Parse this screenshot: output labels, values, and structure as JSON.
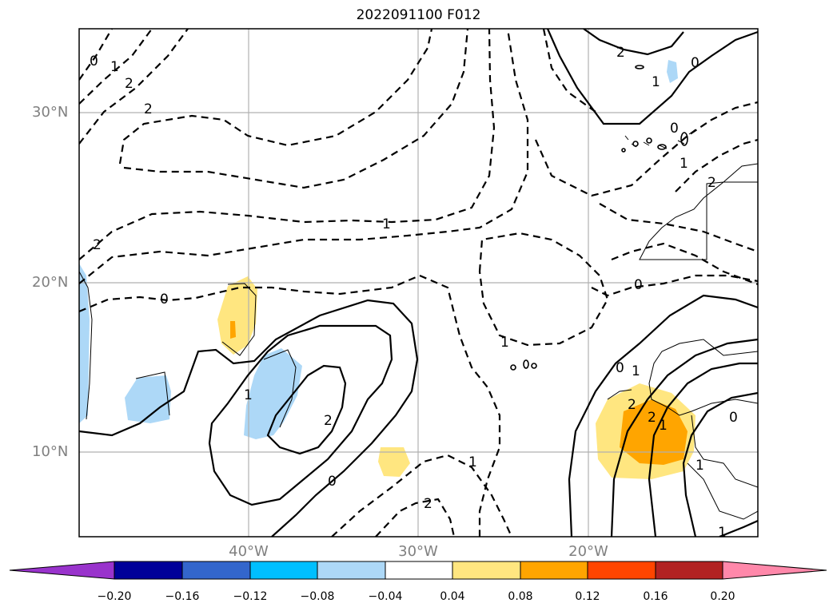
{
  "title": "2022091100 F012",
  "lat_labels": [
    "30°N",
    "20°N",
    "10°N"
  ],
  "lon_labels": [
    "40°W",
    "30°W",
    "20°W"
  ],
  "colorbar": {
    "ticks": [
      "−0.20",
      "−0.16",
      "−0.12",
      "−0.08",
      "−0.04",
      "0.04",
      "0.08",
      "0.12",
      "0.16",
      "0.20"
    ],
    "colors": [
      "#9933cc",
      "#000099",
      "#3366cc",
      "#00bfff",
      "#add8f7",
      "#ffffff",
      "#ffe680",
      "#ffa500",
      "#ff4500",
      "#b22222",
      "#ff88aa"
    ]
  },
  "contour_labels": [
    "0",
    "1",
    "2",
    "2",
    "2",
    "0",
    "1",
    "2",
    "1",
    "0",
    "2",
    "1",
    "0",
    "1",
    "2",
    "1",
    "0",
    "1",
    "2",
    "0",
    "1",
    "2",
    "2",
    "1",
    "0",
    "0",
    "1",
    "1"
  ],
  "chart_data": {
    "type": "map",
    "title": "2022091100 F012",
    "lon_range": [
      -50,
      -10
    ],
    "lat_range": [
      5,
      35
    ],
    "grid": true,
    "colorbar_levels": [
      -0.2,
      -0.16,
      -0.12,
      -0.08,
      -0.04,
      0.04,
      0.08,
      0.12,
      0.16,
      0.2
    ],
    "colorbar_extend": "both"
  }
}
